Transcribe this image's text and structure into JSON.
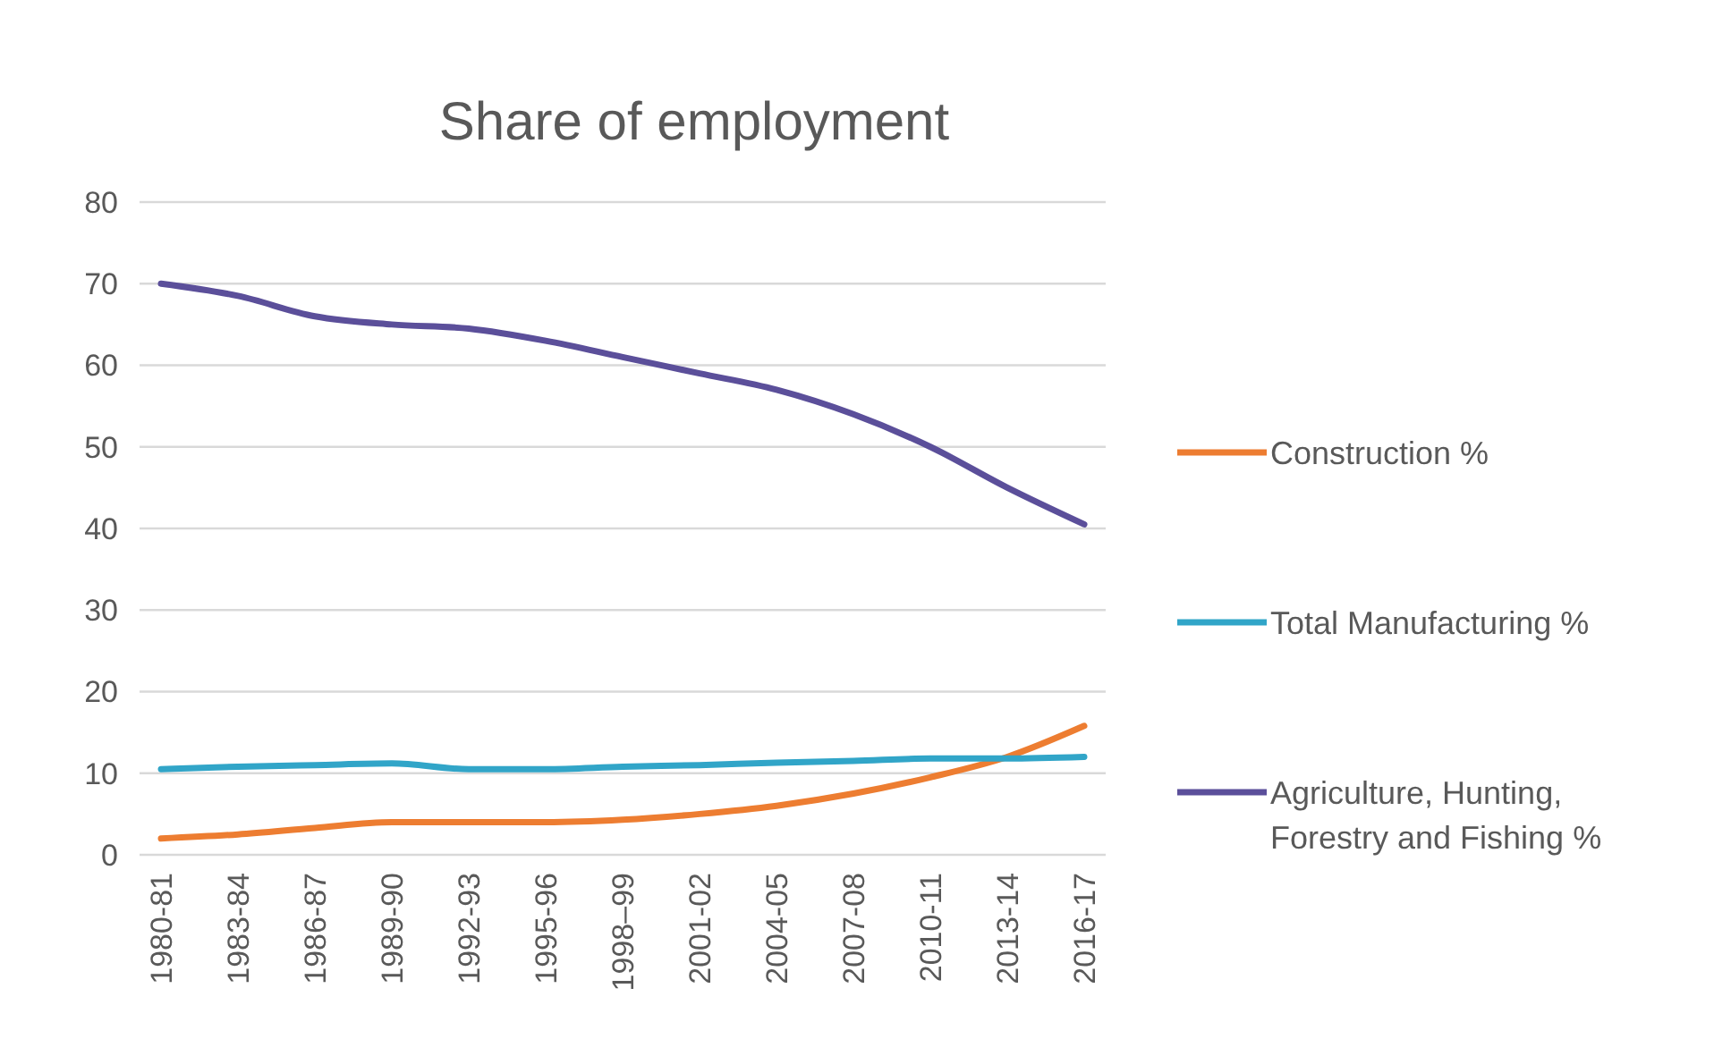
{
  "chart_data": {
    "type": "line",
    "title": "Share of employment",
    "categories": [
      "1980-81",
      "1983-84",
      "1986-87",
      "1989-90",
      "1992-93",
      "1995-96",
      "1998–99",
      "2001-02",
      "2004-05",
      "2007-08",
      "2010-11",
      "2013-14",
      "2016-17"
    ],
    "series": [
      {
        "name": "Construction %",
        "color": "#ed7d31",
        "values": [
          2,
          2.5,
          3.3,
          4,
          4,
          4,
          4.3,
          5,
          6,
          7.5,
          9.5,
          12,
          15.8
        ]
      },
      {
        "name": "Total Manufacturing %",
        "color": "#31a5c8",
        "values": [
          10.5,
          10.8,
          11,
          11.2,
          10.5,
          10.5,
          10.8,
          11,
          11.3,
          11.5,
          11.8,
          11.8,
          12
        ]
      },
      {
        "name": "Agriculture, Hunting, Forestry and Fishing %",
        "color": "#5b4f9a",
        "values": [
          70,
          68.5,
          66,
          65,
          64.5,
          63,
          61,
          59,
          57,
          54,
          50,
          45,
          40.5
        ]
      }
    ],
    "ylim": [
      0,
      80
    ],
    "yticks": [
      0,
      10,
      20,
      30,
      40,
      50,
      60,
      70,
      80
    ],
    "grid": "y",
    "legend": "right",
    "marker": "none",
    "line_style": "solid"
  }
}
